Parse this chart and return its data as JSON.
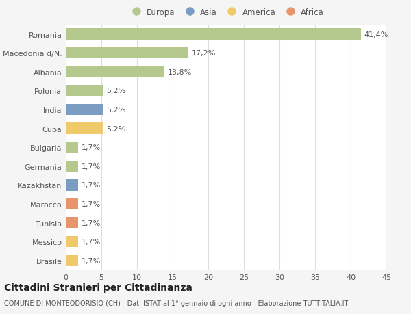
{
  "categories": [
    "Romania",
    "Macedonia d/N.",
    "Albania",
    "Polonia",
    "India",
    "Cuba",
    "Bulgaria",
    "Germania",
    "Kazakhstan",
    "Marocco",
    "Tunisia",
    "Messico",
    "Brasile"
  ],
  "values": [
    41.4,
    17.2,
    13.8,
    5.2,
    5.2,
    5.2,
    1.7,
    1.7,
    1.7,
    1.7,
    1.7,
    1.7,
    1.7
  ],
  "labels": [
    "41,4%",
    "17,2%",
    "13,8%",
    "5,2%",
    "5,2%",
    "5,2%",
    "1,7%",
    "1,7%",
    "1,7%",
    "1,7%",
    "1,7%",
    "1,7%",
    "1,7%"
  ],
  "colors": [
    "#b5c98e",
    "#b5c98e",
    "#b5c98e",
    "#b5c98e",
    "#7b9dc4",
    "#f0c96b",
    "#b5c98e",
    "#b5c98e",
    "#7b9dc4",
    "#e8956d",
    "#e8956d",
    "#f0c96b",
    "#f0c96b"
  ],
  "legend_labels": [
    "Europa",
    "Asia",
    "America",
    "Africa"
  ],
  "legend_colors": [
    "#b5c98e",
    "#7b9dc4",
    "#f0c96b",
    "#e8956d"
  ],
  "title": "Cittadini Stranieri per Cittadinanza",
  "subtitle": "COMUNE DI MONTEODORISIO (CH) - Dati ISTAT al 1° gennaio di ogni anno - Elaborazione TUTTITALIA.IT",
  "xlim": [
    0,
    45
  ],
  "xticks": [
    0,
    5,
    10,
    15,
    20,
    25,
    30,
    35,
    40,
    45
  ],
  "background_color": "#f5f5f5",
  "plot_background": "#ffffff",
  "grid_color": "#dddddd",
  "text_color": "#555555",
  "title_fontsize": 10,
  "subtitle_fontsize": 7,
  "tick_fontsize": 8,
  "label_fontsize": 8,
  "legend_fontsize": 8.5
}
